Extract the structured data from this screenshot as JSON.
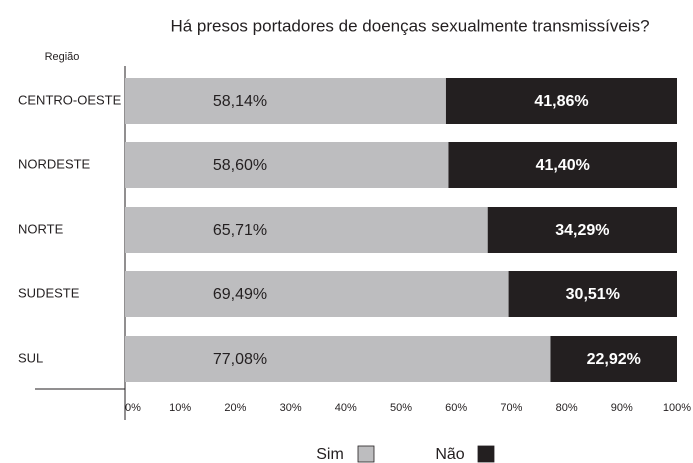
{
  "chart_data": {
    "type": "stacked_barh",
    "title": "Há presos portadores de doenças sexualmente transmissíveis?",
    "y_label": "Região",
    "categories": [
      "CENTRO-OESTE",
      "NORDESTE",
      "NORTE",
      "SUDESTE",
      "SUL"
    ],
    "series": [
      {
        "name": "Sim",
        "color": "#bdbdbf",
        "values": [
          58.14,
          58.6,
          65.71,
          69.49,
          77.08
        ],
        "value_labels": [
          "58,14%",
          "58,60%",
          "65,71%",
          "69,49%",
          "77,08%"
        ]
      },
      {
        "name": "Não",
        "color": "#231f20",
        "values": [
          41.86,
          41.4,
          34.29,
          30.51,
          22.92
        ],
        "value_labels": [
          "41,86%",
          "41,40%",
          "34,29%",
          "30,51%",
          "22,92%"
        ]
      }
    ],
    "xlim": [
      0,
      100
    ],
    "xticks": [
      {
        "value": 0,
        "label": "0%"
      },
      {
        "value": 10,
        "label": "10%"
      },
      {
        "value": 20,
        "label": "20%"
      },
      {
        "value": 30,
        "label": "30%"
      },
      {
        "value": 40,
        "label": "40%"
      },
      {
        "value": 50,
        "label": "50%"
      },
      {
        "value": 60,
        "label": "60%"
      },
      {
        "value": 70,
        "label": "70%"
      },
      {
        "value": 80,
        "label": "80%"
      },
      {
        "value": 90,
        "label": "90%"
      },
      {
        "value": 100,
        "label": "100%"
      }
    ]
  }
}
